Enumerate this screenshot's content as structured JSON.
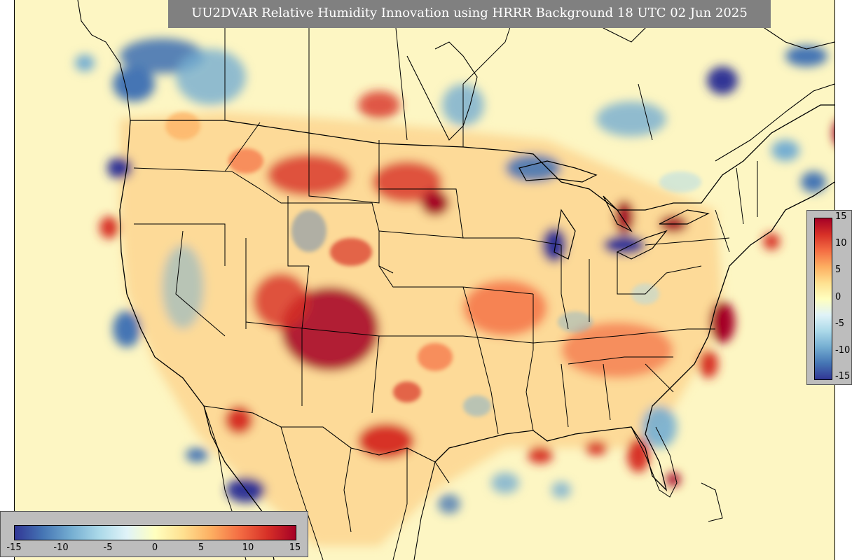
{
  "title": "UU2DVAR Relative Humidity Innovation using HRRR Background 18 UTC 02 Jun 2025",
  "colorbar": {
    "min": -15,
    "max": 15,
    "ticks_vertical": [
      "15",
      "10",
      "5",
      "0",
      "-5",
      "-10",
      "-15"
    ],
    "ticks_horizontal": [
      "-15",
      "-10",
      "-5",
      "0",
      "5",
      "10",
      "15"
    ],
    "colors": [
      "#313695",
      "#4575b4",
      "#74add1",
      "#abd9e9",
      "#e0f3f8",
      "#ffffbf",
      "#fee090",
      "#fdae61",
      "#f46d43",
      "#d73027",
      "#a50026"
    ]
  },
  "map": {
    "background_color": "#fdf6c3",
    "boundary_color": "#000000"
  }
}
